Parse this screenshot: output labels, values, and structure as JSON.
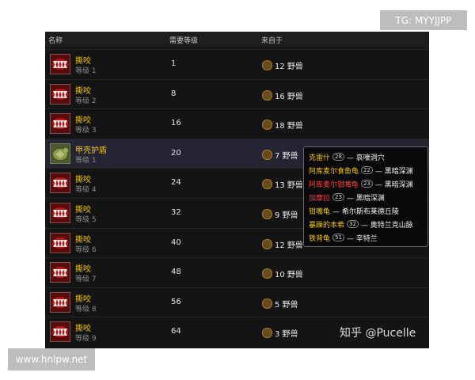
{
  "watermark_top": "TG: MYYJJPP",
  "watermark_bottom": "www.hnlpw.net",
  "credit": "知乎 @Pucelle",
  "header": {
    "name": "名称",
    "required_level": "需要等级",
    "source": "来自于"
  },
  "rows": [
    {
      "name": "撕咬",
      "rank": "等级 1",
      "required_level": 1,
      "source": "12 野兽"
    },
    {
      "name": "撕咬",
      "rank": "等级 2",
      "required_level": 8,
      "source": "16 野兽"
    },
    {
      "name": "撕咬",
      "rank": "等级 3",
      "required_level": 16,
      "source": "18 野兽"
    },
    {
      "name": "甲壳护盾",
      "rank": "等级 1",
      "required_level": 20,
      "source": "7 野兽"
    },
    {
      "name": "撕咬",
      "rank": "等级 4",
      "required_level": 24,
      "source": "13 野兽"
    },
    {
      "name": "撕咬",
      "rank": "等级 5",
      "required_level": 32,
      "source": "9 野兽"
    },
    {
      "name": "撕咬",
      "rank": "等级 6",
      "required_level": 40,
      "source": "12 野兽"
    },
    {
      "name": "撕咬",
      "rank": "等级 7",
      "required_level": 48,
      "source": "10 野兽"
    },
    {
      "name": "撕咬",
      "rank": "等级 8",
      "required_level": 56,
      "source": "5 野兽"
    },
    {
      "name": "撕咬",
      "rank": "等级 9",
      "required_level": 64,
      "source": "3 野兽"
    }
  ],
  "tooltip": [
    {
      "name": "克雷什",
      "level": 28,
      "zone": "— 哀嚎洞穴"
    },
    {
      "name": "阿库麦尔食鱼龟",
      "level": 22,
      "zone": "— 黑暗深渊"
    },
    {
      "name": "阿库麦尔钳嘴龟",
      "level": 23,
      "zone": "— 黑暗深渊",
      "color": "#ff4040"
    },
    {
      "name": "加摩拉",
      "level": 23,
      "zone": "— 黑暗深渊",
      "color": "#ff4040"
    },
    {
      "name": "钳嘴龟",
      "zone": "— 希尔斯布莱德丘陵"
    },
    {
      "name": "暴躁的本希",
      "level": 32,
      "zone": "— 奥特兰克山脉"
    },
    {
      "name": "铁背龟",
      "level": 51,
      "zone": "— 辛特兰"
    }
  ]
}
